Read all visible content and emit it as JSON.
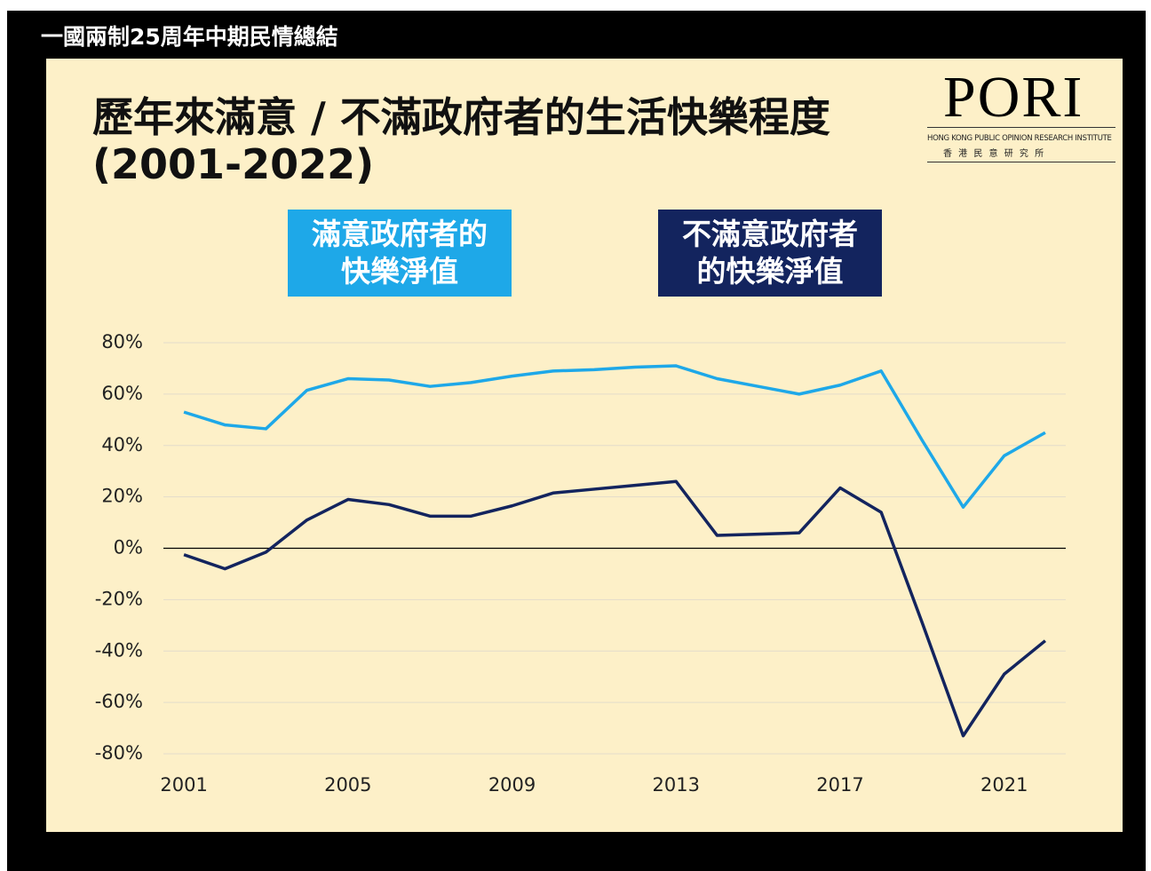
{
  "header": {
    "title": "一國兩制25周年中期民情總結"
  },
  "logo": {
    "name": "PORI",
    "subtitle": "HONG KONG PUBLIC OPINION RESEARCH INSTITUTE",
    "chinese": "香 港 民 意 研 究 所"
  },
  "chart_data": {
    "type": "line",
    "title": "歷年來滿意 / 不滿政府者的生活快樂程度",
    "subtitle": "(2001-2022)",
    "x": [
      2001,
      2002,
      2003,
      2004,
      2005,
      2006,
      2007,
      2008,
      2009,
      2010,
      2011,
      2012,
      2013,
      2014,
      2015,
      2016,
      2017,
      2018,
      2019,
      2020,
      2021,
      2022
    ],
    "series": [
      {
        "name": "滿意政府者的快樂淨值",
        "color": "#1ea8e8",
        "values": [
          53,
          48,
          46.5,
          61.5,
          66,
          65.5,
          63,
          64.5,
          67,
          69,
          69.5,
          70.5,
          71,
          66,
          63,
          60,
          63.5,
          69,
          42,
          16,
          36,
          45
        ]
      },
      {
        "name": "不滿意政府者的快樂淨值",
        "color": "#13245e",
        "values": [
          -2.5,
          -8,
          -1.5,
          11,
          19,
          17,
          12.5,
          12.5,
          16.5,
          21.5,
          23,
          24.5,
          26,
          5,
          5.5,
          6,
          23.5,
          14,
          -29,
          -73,
          -49,
          -36
        ]
      }
    ],
    "xlim": [
      2000.5,
      2022.5
    ],
    "xticks": [
      2001,
      2005,
      2009,
      2013,
      2017,
      2021
    ],
    "ylim": [
      -80,
      80
    ],
    "yticks": [
      {
        "value": 80,
        "label": "80%"
      },
      {
        "value": 60,
        "label": "60%"
      },
      {
        "value": 40,
        "label": "40%"
      },
      {
        "value": 20,
        "label": "20%"
      },
      {
        "value": 0,
        "label": "0%"
      },
      {
        "value": -20,
        "label": "-20%"
      },
      {
        "value": -40,
        "label": "-40%"
      },
      {
        "value": -60,
        "label": "-60%"
      },
      {
        "value": -80,
        "label": "-80%"
      }
    ],
    "grid": true
  }
}
